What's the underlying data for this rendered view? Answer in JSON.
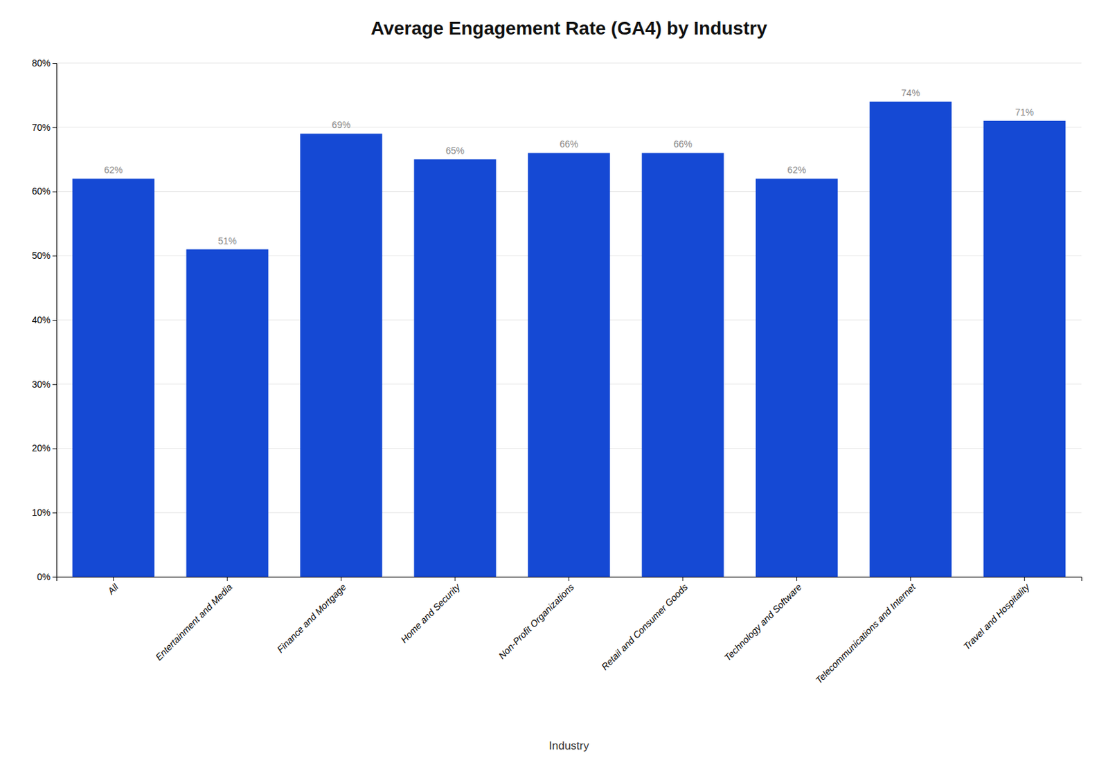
{
  "chart_data": {
    "type": "bar",
    "title": "Average Engagement Rate (GA4) by Industry",
    "xlabel": "Industry",
    "categories": [
      "All",
      "Entertainment and Media",
      "Finance and Mortgage",
      "Home and Security",
      "Non-Profit Organizations",
      "Retail and Consumer Goods",
      "Technology and Software",
      "Telecommunications and Internet",
      "Travel and Hospitality"
    ],
    "values": [
      62,
      51,
      69,
      65,
      66,
      66,
      62,
      74,
      71
    ],
    "value_labels": [
      "62%",
      "51%",
      "69%",
      "65%",
      "66%",
      "66%",
      "62%",
      "74%",
      "71%"
    ],
    "data_labels": true,
    "color": "#1549d4",
    "ylim": [
      0,
      80
    ],
    "yticks": [
      {
        "value": 0,
        "label": "0%"
      },
      {
        "value": 10,
        "label": "10%"
      },
      {
        "value": 20,
        "label": "20%"
      },
      {
        "value": 30,
        "label": "30%"
      },
      {
        "value": 40,
        "label": "40%"
      },
      {
        "value": 50,
        "label": "50%"
      },
      {
        "value": 60,
        "label": "60%"
      },
      {
        "value": 70,
        "label": "70%"
      },
      {
        "value": 80,
        "label": "80%"
      }
    ],
    "grid": true
  }
}
